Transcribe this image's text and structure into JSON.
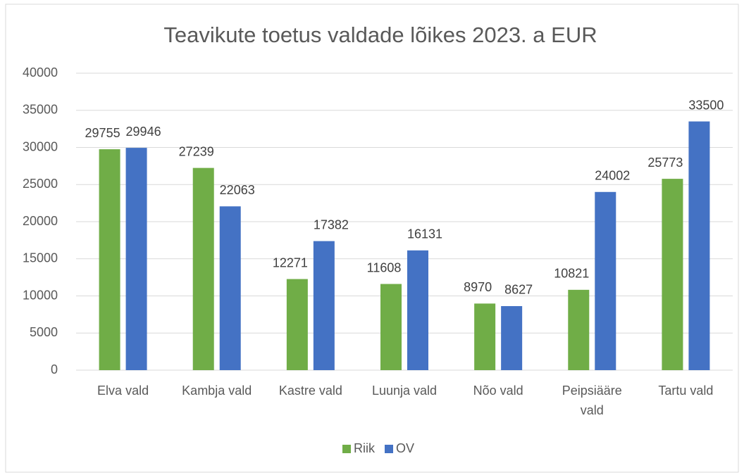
{
  "chart_data": {
    "type": "bar",
    "title": "Teavikute toetus valdade lõikes 2023. a EUR",
    "categories": [
      "Elva vald",
      "Kambja vald",
      "Kastre vald",
      "Luunja vald",
      "Nõo vald",
      "Peipsiääre vald",
      "Tartu vald"
    ],
    "series": [
      {
        "name": "Riik",
        "color": "#70ad47",
        "values": [
          29755,
          27239,
          12271,
          11608,
          8970,
          10821,
          25773
        ]
      },
      {
        "name": "OV",
        "color": "#4472c4",
        "values": [
          29946,
          22063,
          17382,
          16131,
          8627,
          24002,
          33500
        ]
      }
    ],
    "ylim": [
      0,
      40000
    ],
    "yticks": [
      0,
      5000,
      10000,
      15000,
      20000,
      25000,
      30000,
      35000,
      40000
    ],
    "grid": true,
    "legend": "bottom"
  }
}
